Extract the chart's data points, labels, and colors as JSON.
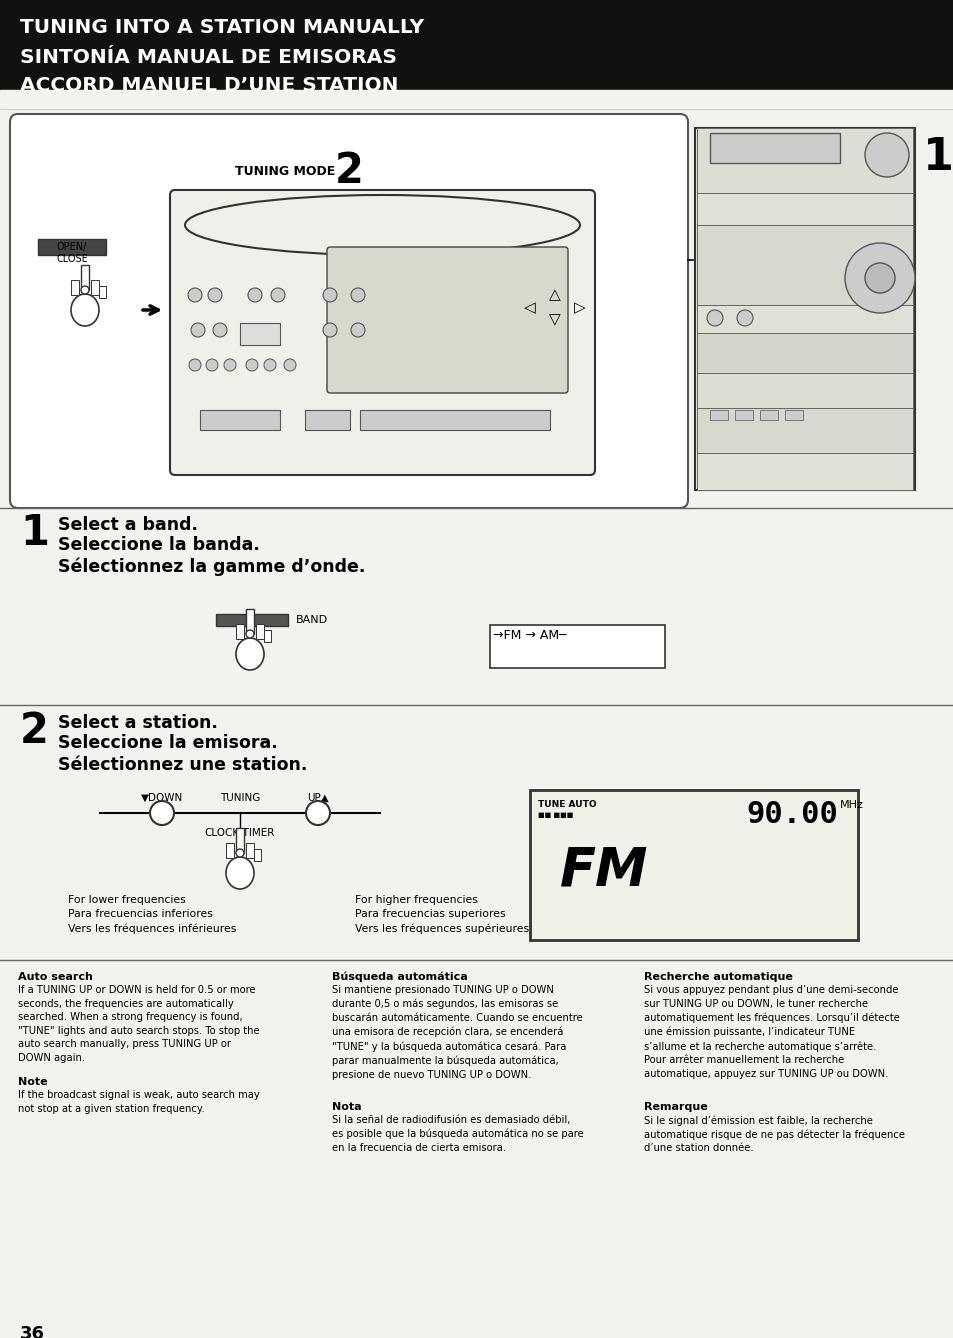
{
  "title_line1": "TUNING INTO A STATION MANUALLY",
  "title_line2": "SINTONÍA MANUAL DE EMISORAS",
  "title_line3": "ACCORD MANUEL D’UNE STATION",
  "header_bg": "#111111",
  "page_bg": "#f2f2ee",
  "section1_label": "1",
  "section1_text1": "Select a band.",
  "section1_text2": "Seleccione la banda.",
  "section1_text3": "Sélectionnez la gamme d’onde.",
  "section2_label": "2",
  "section2_text1": "Select a station.",
  "section2_text2": "Seleccione la emisora.",
  "section2_text3": "Sélectionnez une station.",
  "band_label": "BAND",
  "fm_am_label": "→FM → AM─",
  "down_label": "▼DOWN",
  "tuning_label": "TUNING",
  "up_label": "UP▲",
  "clock_timer_label": "CLOCK/TIMER",
  "lower_freq_en": "For lower frequencies",
  "lower_freq_es": "Para frecuencias inferiores",
  "lower_freq_fr": "Vers les fréquences inférieures",
  "higher_freq_en": "For higher frequencies",
  "higher_freq_es": "Para frecuencias superiores",
  "higher_freq_fr": "Vers les fréquences supérieures",
  "tuning_mode_label": "TUNING MODE",
  "open_close_label": "OPEN/\nCLOSE",
  "tune_auto_label": "TUNE AUTO",
  "page_number": "36",
  "col1_head1": "Auto search",
  "col1_body1": "If a TUNING UP or DOWN is held for 0.5 or more\nseconds, the frequencies are automatically\nsearched. When a strong frequency is found,\n\"TUNE\" lights and auto search stops. To stop the\nauto search manually, press TUNING UP or\nDOWN again.",
  "col1_head2": "Note",
  "col1_body2": "If the broadcast signal is weak, auto search may\nnot stop at a given station frequency.",
  "col2_head1": "Búsqueda automática",
  "col2_body1": "Si mantiene presionado TUNING UP o DOWN\ndurante 0,5 o más segundos, las emisoras se\nbuscarán automáticamente. Cuando se encuentre\nuna emisora de recepción clara, se encenderá\n\"TUNE\" y la búsqueda automática cesará. Para\nparar manualmente la búsqueda automática,\npresione de nuevo TUNING UP o DOWN.",
  "col2_head2": "Nota",
  "col2_body2": "Si la señal de radiodifusión es demasiado débil,\nes posible que la búsqueda automática no se pare\nen la frecuencia de cierta emisora.",
  "col3_head1": "Recherche automatique",
  "col3_body1": "Si vous appuyez pendant plus d’une demi-seconde\nsur TUNING UP ou DOWN, le tuner recherche\nautomatiquement les fréquences. Lorsqu’il détecte\nune émission puissante, l’indicateur TUNE\ns’allume et la recherche automatique s’arrête.\nPour arrêter manuellement la recherche\nautomatique, appuyez sur TUNING UP ou DOWN.",
  "col3_head2": "Remarque",
  "col3_body2": "Si le signal d’émission est faible, la recherche\nautomatique risque de ne pas détecter la fréquence\nd’une station donnée."
}
